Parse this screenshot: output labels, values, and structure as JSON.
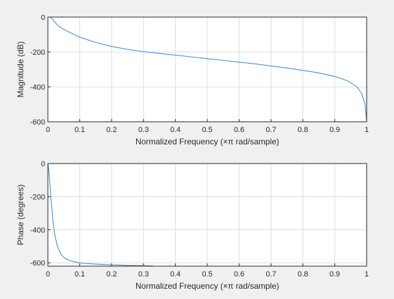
{
  "chart_data": [
    {
      "type": "line",
      "xlabel": "Normalized Frequency  (×π rad/sample)",
      "ylabel": "Magnitude (dB)",
      "xlim": [
        0,
        1
      ],
      "ylim": [
        -600,
        0
      ],
      "xticks": [
        "0",
        "0.1",
        "0.2",
        "0.3",
        "0.4",
        "0.5",
        "0.6",
        "0.7",
        "0.8",
        "0.9",
        "1"
      ],
      "yticks": [
        "0",
        "-200",
        "-400",
        "-600"
      ],
      "grid": true,
      "color": "#4a90c8",
      "x": [
        0,
        0.005,
        0.01,
        0.02,
        0.03,
        0.04,
        0.06,
        0.08,
        0.1,
        0.15,
        0.2,
        0.25,
        0.3,
        0.35,
        0.4,
        0.45,
        0.5,
        0.55,
        0.6,
        0.65,
        0.7,
        0.75,
        0.8,
        0.85,
        0.9,
        0.94,
        0.97,
        0.985,
        0.995,
        1.0
      ],
      "y": [
        0,
        0,
        -2,
        -25,
        -45,
        -60,
        -80,
        -98,
        -115,
        -145,
        -168,
        -185,
        -198,
        -208,
        -218,
        -228,
        -238,
        -248,
        -258,
        -268,
        -280,
        -292,
        -305,
        -320,
        -340,
        -365,
        -400,
        -440,
        -500,
        -600
      ]
    },
    {
      "type": "line",
      "xlabel": "Normalized Frequency  (×π rad/sample)",
      "ylabel": "Phase (degrees)",
      "xlim": [
        0,
        1
      ],
      "ylim": [
        -620,
        0
      ],
      "xticks": [
        "0",
        "0.1",
        "0.2",
        "0.3",
        "0.4",
        "0.5",
        "0.6",
        "0.7",
        "0.8",
        "0.9",
        "1"
      ],
      "yticks": [
        "0",
        "-200",
        "-400",
        "-600"
      ],
      "grid": true,
      "color": "#4a90c8",
      "x": [
        0,
        0.003,
        0.006,
        0.01,
        0.015,
        0.02,
        0.025,
        0.03,
        0.04,
        0.05,
        0.06,
        0.08,
        0.1,
        0.12,
        0.15,
        0.2,
        0.25,
        0.3,
        0.33
      ],
      "y": [
        0,
        -40,
        -110,
        -220,
        -330,
        -410,
        -460,
        -500,
        -545,
        -567,
        -580,
        -593,
        -600,
        -604,
        -608,
        -612,
        -615,
        -617,
        -618
      ]
    }
  ]
}
